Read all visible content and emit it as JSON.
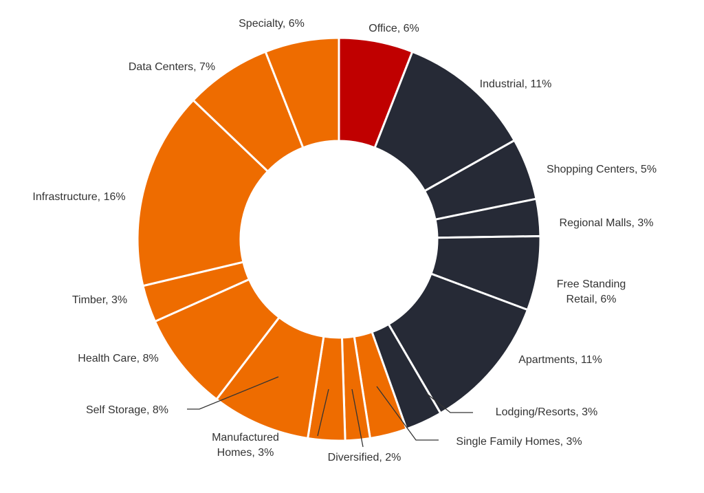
{
  "chart_data": {
    "type": "donut",
    "values": [
      6,
      11,
      5,
      3,
      6,
      11,
      3,
      3,
      2,
      3,
      8,
      8,
      3,
      16,
      7,
      6
    ],
    "value_labels": [
      "Office, 6%",
      "Industrial, 11%",
      "Shopping Centers, 5%",
      "Regional Malls, 3%",
      "Free Standing Retail, 6%",
      "Apartments, 11%",
      "Lodging/Resorts, 3%",
      "Single Family Homes, 3%",
      "Diversified, 2%",
      "Manufactured Homes, 3%",
      "Self Storage, 8%",
      "Health Care, 8%",
      "Timber, 3%",
      "Infrastructure, 16%",
      "Data Centers, 7%",
      "Specialty, 6%"
    ],
    "colors": [
      "#c00000",
      "#262a36",
      "#262a36",
      "#262a36",
      "#262a36",
      "#262a36",
      "#262a36",
      "#ee6c00",
      "#ee6c00",
      "#ee6c00",
      "#ee6c00",
      "#ee6c00",
      "#ee6c00",
      "#ee6c00",
      "#ee6c00",
      "#ee6c00"
    ]
  }
}
